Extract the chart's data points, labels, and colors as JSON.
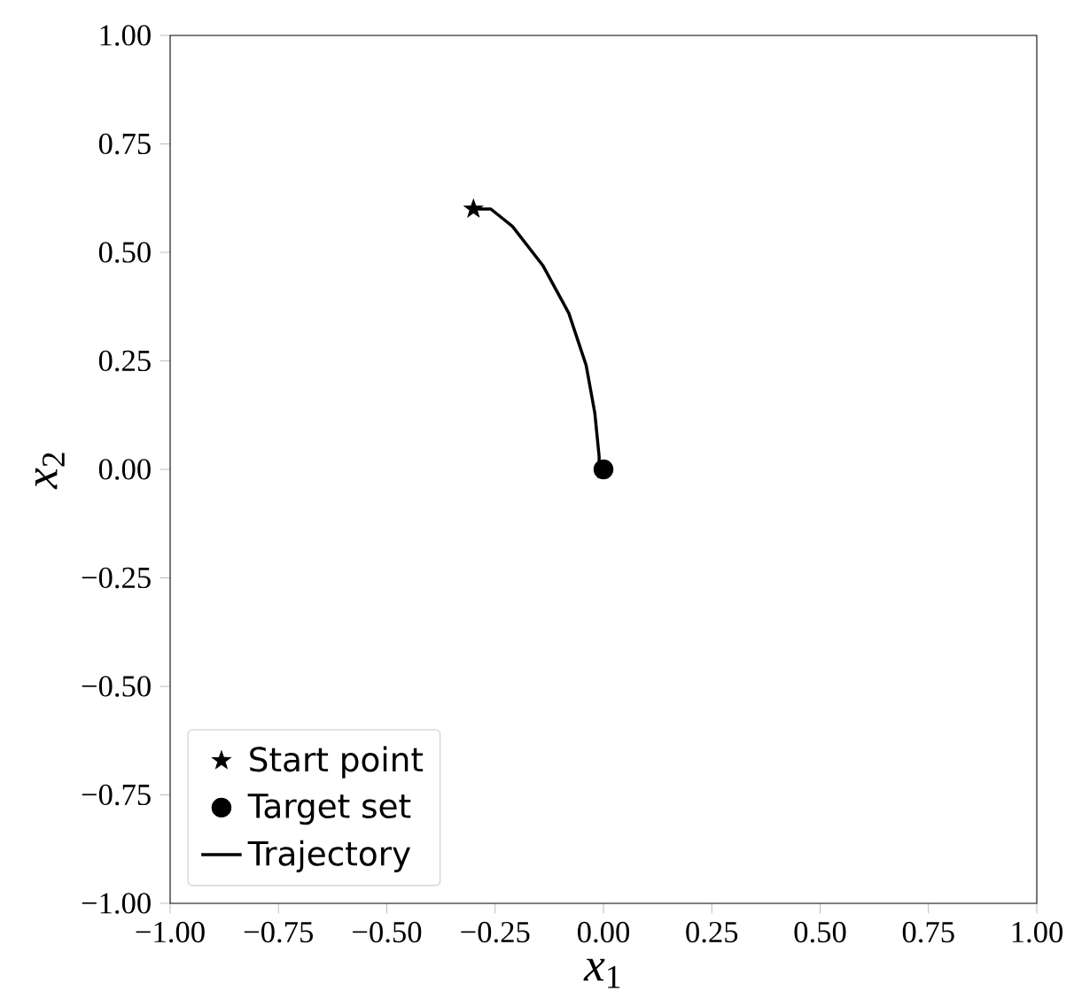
{
  "chart_data": {
    "type": "line",
    "xlabel": "*x*$_{1}$",
    "ylabel": "*x*$_{2}$",
    "xlim": [
      -1,
      1
    ],
    "ylim": [
      -1,
      1
    ],
    "xticks": [
      {
        "value": -1,
        "label": "−1.00"
      },
      {
        "value": -0.75,
        "label": "−0.75"
      },
      {
        "value": -0.5,
        "label": "−0.50"
      },
      {
        "value": -0.25,
        "label": "−0.25"
      },
      {
        "value": 0,
        "label": "0.00"
      },
      {
        "value": 0.25,
        "label": "0.25"
      },
      {
        "value": 0.5,
        "label": "0.50"
      },
      {
        "value": 0.75,
        "label": "0.75"
      },
      {
        "value": 1,
        "label": "1.00"
      }
    ],
    "yticks": [
      {
        "value": -1,
        "label": "−1.00"
      },
      {
        "value": -0.75,
        "label": "−0.75"
      },
      {
        "value": -0.5,
        "label": "−0.50"
      },
      {
        "value": -0.25,
        "label": "−0.25"
      },
      {
        "value": 0,
        "label": "0.00"
      },
      {
        "value": 0.25,
        "label": "0.25"
      },
      {
        "value": 0.5,
        "label": "0.50"
      },
      {
        "value": 0.75,
        "label": "0.75"
      },
      {
        "value": 1,
        "label": "1.00"
      }
    ],
    "legend": "bottom left",
    "grid": false,
    "series": [
      {
        "name": "Start point",
        "type": "scatter",
        "marker": "star",
        "color": "#000000",
        "x": [
          -0.3
        ],
        "values": [
          0.6
        ]
      },
      {
        "name": "Target set",
        "type": "scatter",
        "marker": "circle",
        "color": "#000000",
        "x": [
          0.0
        ],
        "values": [
          0.0
        ]
      },
      {
        "name": "Trajectory",
        "marker": "none",
        "line_style": "solid",
        "color": "#000000",
        "x": [
          -0.3,
          -0.26,
          -0.21,
          -0.14,
          -0.08,
          -0.04,
          -0.02,
          -0.01,
          -0.01
        ],
        "values": [
          0.6,
          0.6,
          0.56,
          0.47,
          0.36,
          0.24,
          0.13,
          0.03,
          -0.02
        ]
      }
    ]
  }
}
